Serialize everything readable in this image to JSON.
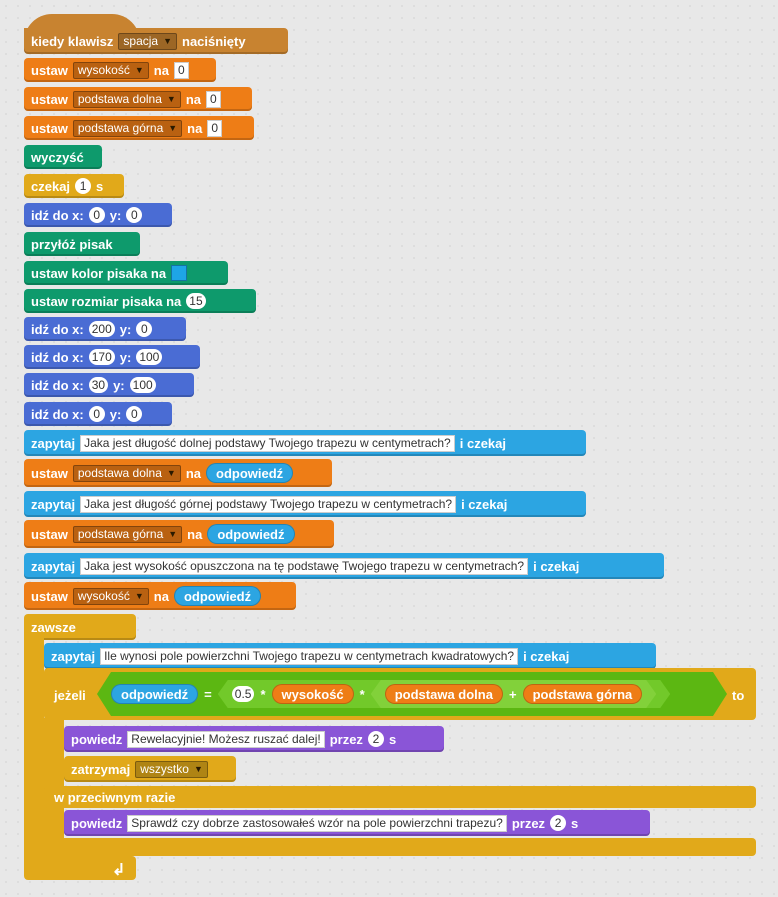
{
  "script": {
    "hat": {
      "text1": "kiedy klawisz",
      "key": "spacja",
      "text2": "naciśnięty"
    },
    "set_height": {
      "label": "ustaw",
      "var": "wysokość",
      "to": "na",
      "value": "0"
    },
    "set_lower": {
      "label": "ustaw",
      "var": "podstawa dolna",
      "to": "na",
      "value": "0"
    },
    "set_upper": {
      "label": "ustaw",
      "var": "podstawa górna",
      "to": "na",
      "value": "0"
    },
    "clear": {
      "label": "wyczyść"
    },
    "wait": {
      "label": "czekaj",
      "value": "1",
      "unit": "s"
    },
    "goto0": {
      "label": "idź do x:",
      "x": "0",
      "ylabel": "y:",
      "y": "0"
    },
    "pen_down": {
      "label": "przyłóż pisak"
    },
    "pen_color": {
      "label": "ustaw kolor pisaka na",
      "color": "#1ea5e6"
    },
    "pen_size": {
      "label": "ustaw rozmiar pisaka na",
      "value": "15"
    },
    "goto1": {
      "label": "idź do x:",
      "x": "200",
      "ylabel": "y:",
      "y": "0"
    },
    "goto2": {
      "label": "idź do x:",
      "x": "170",
      "ylabel": "y:",
      "y": "100"
    },
    "goto3": {
      "label": "idź do x:",
      "x": "30",
      "ylabel": "y:",
      "y": "100"
    },
    "goto4": {
      "label": "idź do x:",
      "x": "0",
      "ylabel": "y:",
      "y": "0"
    },
    "ask1": {
      "label": "zapytaj",
      "question": "Jaka jest długość dolnej podstawy Twojego trapezu w centymetrach?",
      "wait": "i czekaj"
    },
    "set_lower_ans": {
      "label": "ustaw",
      "var": "podstawa dolna",
      "to": "na",
      "answer": "odpowiedź"
    },
    "ask2": {
      "label": "zapytaj",
      "question": "Jaka jest długość górnej podstawy Twojego trapezu w centymetrach?",
      "wait": "i czekaj"
    },
    "set_upper_ans": {
      "label": "ustaw",
      "var": "podstawa górna",
      "to": "na",
      "answer": "odpowiedź"
    },
    "ask3": {
      "label": "zapytaj",
      "question": "Jaka jest wysokość opuszczona na tę podstawę Twojego trapezu w centymetrach?",
      "wait": "i czekaj"
    },
    "set_height_ans": {
      "label": "ustaw",
      "var": "wysokość",
      "to": "na",
      "answer": "odpowiedź"
    },
    "forever": {
      "label": "zawsze"
    },
    "ask4": {
      "label": "zapytaj",
      "question": "Ile wynosi pole powierzchni Twojego trapezu w centymetrach kwadratowych?",
      "wait": "i czekaj"
    },
    "if": {
      "label": "jeżeli",
      "then": "to",
      "answer": "odpowiedź",
      "eq": "=",
      "half": "0.5",
      "times1": "*",
      "height": "wysokość",
      "times2": "*",
      "lower": "podstawa dolna",
      "plus": "+",
      "upper": "podstawa górna"
    },
    "say1": {
      "label": "powiedz",
      "text": "Rewelacyjnie! Możesz ruszać dalej!",
      "for": "przez",
      "secs": "2",
      "unit": "s"
    },
    "stop": {
      "label": "zatrzymaj",
      "option": "wszystko"
    },
    "else": {
      "label": "w przeciwnym razie"
    },
    "say2": {
      "label": "powiedz",
      "text": "Sprawdź czy dobrze zastosowałeś wzór na pole powierzchni trapezu?",
      "for": "przez",
      "secs": "2",
      "unit": "s"
    },
    "loop_arrow": "↲"
  },
  "colors": {
    "motion": "#4a6cd4",
    "control": "#e1a91a",
    "events": "#c88330",
    "pen": "#0e9a6c",
    "data": "#ee7d16",
    "sensing": "#2ca5e2",
    "looks": "#8a55d7",
    "operators": "#5cb712"
  }
}
